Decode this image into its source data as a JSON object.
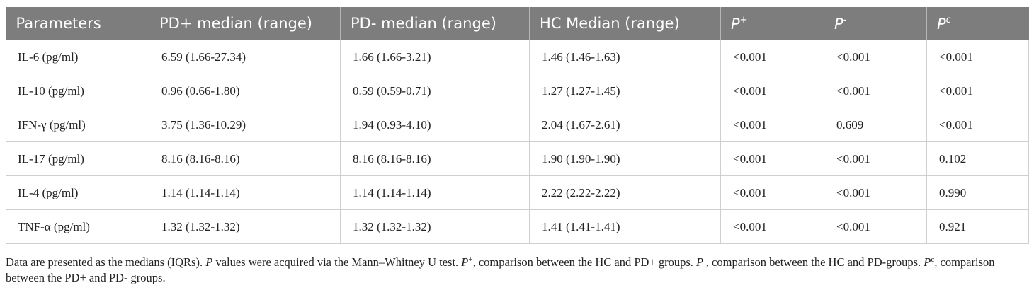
{
  "table": {
    "headers": {
      "parameters": "Parameters",
      "pd_plus": "PD+ median (range)",
      "pd_minus": "PD- median (range)",
      "hc": "HC Median (range)",
      "p_letter": "P",
      "p_plus_sup": "+",
      "p_minus_sup": "-",
      "p_c_sup": "c"
    },
    "rows": [
      [
        "IL-6 (pg/ml)",
        "6.59 (1.66-27.34)",
        "1.66 (1.66-3.21)",
        "1.46 (1.46-1.63)",
        "<0.001",
        "<0.001",
        "<0.001"
      ],
      [
        "IL-10 (pg/ml)",
        "0.96 (0.66-1.80)",
        "0.59 (0.59-0.71)",
        "1.27 (1.27-1.45)",
        "<0.001",
        "<0.001",
        "<0.001"
      ],
      [
        "IFN-γ (pg/ml)",
        "3.75 (1.36-10.29)",
        "1.94 (0.93-4.10)",
        "2.04 (1.67-2.61)",
        "<0.001",
        "0.609",
        "<0.001"
      ],
      [
        "IL-17 (pg/ml)",
        "8.16 (8.16-8.16)",
        "8.16 (8.16-8.16)",
        "1.90 (1.90-1.90)",
        "<0.001",
        "<0.001",
        "0.102"
      ],
      [
        "IL-4 (pg/ml)",
        "1.14 (1.14-1.14)",
        "1.14 (1.14-1.14)",
        "2.22 (2.22-2.22)",
        "<0.001",
        "<0.001",
        "0.990"
      ],
      [
        "TNF-α (pg/ml)",
        "1.32 (1.32-1.32)",
        "1.32 (1.32-1.32)",
        "1.41 (1.41-1.41)",
        "<0.001",
        "<0.001",
        "0.921"
      ]
    ]
  },
  "footnote": {
    "line1": "Data are presented as the medians (IQRs). ",
    "p": "P",
    "line1b": " values were acquired via the Mann–Whitney U test. ",
    "plus": "+",
    "line1c": ", comparison between the HC and PD+ groups. ",
    "minus": "-",
    "line1d": ", comparison between the HC and PD-groups. ",
    "c": "c",
    "line1e": ", comparison between the PD+ and PD- groups."
  },
  "colors": {
    "header_bg": "#7d7d7d",
    "header_text": "#ffffff",
    "grid": "#cfcfcf"
  }
}
